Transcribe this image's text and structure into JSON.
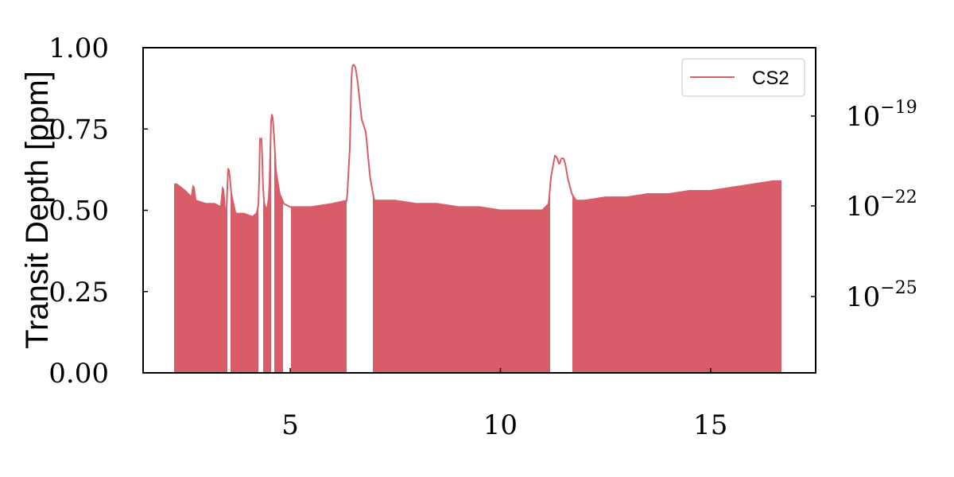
{
  "chart_data": {
    "type": "area",
    "title": "",
    "xlabel": "",
    "ylabel": "Transit Depth [ppm]",
    "xlim": [
      1.5,
      17.5
    ],
    "ylim": [
      0,
      1.0
    ],
    "x_ticks": [
      5,
      10,
      15
    ],
    "x_tick_labels": [
      "5",
      "10",
      "15"
    ],
    "y_ticks": [
      0,
      0.25,
      0.5,
      0.75,
      1.0
    ],
    "y_tick_labels": [
      "0.00",
      "0.25",
      "0.50",
      "0.75",
      "1.00"
    ],
    "y2_tick_labels": [
      {
        "base": "10",
        "exp": "−19"
      },
      {
        "base": "10",
        "exp": "−22"
      },
      {
        "base": "10",
        "exp": "−25"
      }
    ],
    "legend": {
      "position": "top-right",
      "entries": [
        "CS2"
      ]
    },
    "grid": false,
    "colors": {
      "series": "#d95c69"
    },
    "series": [
      {
        "name": "CS2",
        "x": [
          2.22,
          2.3,
          2.5,
          2.65,
          2.7,
          2.75,
          3.0,
          3.2,
          3.35,
          3.4,
          3.45,
          3.48,
          3.52,
          3.55,
          3.6,
          3.7,
          3.9,
          4.1,
          4.2,
          4.25,
          4.28,
          4.32,
          4.36,
          4.38,
          4.45,
          4.5,
          4.55,
          4.58,
          4.62,
          4.66,
          4.75,
          4.85,
          5.0,
          5.5,
          6.0,
          6.35,
          6.42,
          6.46,
          6.5,
          6.55,
          6.6,
          6.7,
          6.8,
          6.9,
          7.0,
          7.5,
          8.0,
          8.5,
          9.0,
          9.5,
          10.0,
          10.5,
          11.0,
          11.15,
          11.2,
          11.3,
          11.35,
          11.4,
          11.45,
          11.5,
          11.55,
          11.6,
          11.7,
          11.8,
          11.9,
          12.0,
          12.5,
          13.0,
          13.5,
          14.0,
          14.5,
          15.0,
          15.5,
          16.0,
          16.5,
          16.7
        ],
        "y": [
          0.58,
          0.58,
          0.56,
          0.54,
          0.58,
          0.53,
          0.52,
          0.52,
          0.51,
          0.58,
          0.5,
          0.48,
          0.63,
          0.62,
          0.55,
          0.49,
          0.49,
          0.48,
          0.49,
          0.52,
          0.72,
          0.72,
          0.55,
          0.52,
          0.5,
          0.55,
          0.8,
          0.79,
          0.72,
          0.62,
          0.55,
          0.52,
          0.51,
          0.51,
          0.52,
          0.53,
          0.7,
          0.93,
          0.95,
          0.94,
          0.9,
          0.78,
          0.74,
          0.6,
          0.53,
          0.53,
          0.52,
          0.52,
          0.51,
          0.51,
          0.5,
          0.5,
          0.5,
          0.52,
          0.6,
          0.67,
          0.66,
          0.64,
          0.66,
          0.66,
          0.64,
          0.6,
          0.55,
          0.53,
          0.53,
          0.53,
          0.54,
          0.54,
          0.55,
          0.55,
          0.56,
          0.56,
          0.57,
          0.58,
          0.59,
          0.59
        ]
      }
    ],
    "gaps": [
      [
        3.52,
        3.58
      ],
      [
        4.25,
        4.35
      ],
      [
        4.55,
        4.62
      ],
      [
        4.84,
        5.0
      ],
      [
        6.35,
        6.95
      ],
      [
        11.2,
        11.7
      ]
    ]
  }
}
